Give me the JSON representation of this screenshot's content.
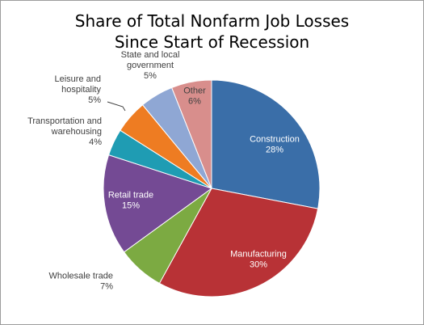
{
  "chart_data": {
    "type": "pie",
    "title": [
      "Share of Total Nonfarm Job Losses",
      "Since Start of Recession"
    ],
    "slices": [
      {
        "label": [
          "Construction"
        ],
        "value": 28,
        "pct_label": "28%",
        "color": "#3a6ea8"
      },
      {
        "label": [
          "Manufacturing"
        ],
        "value": 30,
        "pct_label": "30%",
        "color": "#b83236"
      },
      {
        "label": [
          "Wholesale trade"
        ],
        "value": 7,
        "pct_label": "7%",
        "color": "#7caa42"
      },
      {
        "label": [
          "Retail trade"
        ],
        "value": 15,
        "pct_label": "15%",
        "color": "#744a94"
      },
      {
        "label": [
          "Transportation and",
          "warehousing"
        ],
        "value": 4,
        "pct_label": "4%",
        "color": "#1f9cb3"
      },
      {
        "label": [
          "Leisure and",
          "hospitality"
        ],
        "value": 5,
        "pct_label": "5%",
        "color": "#ee7c22"
      },
      {
        "label": [
          "State and local",
          "government"
        ],
        "value": 5,
        "pct_label": "5%",
        "color": "#8fa7d4"
      },
      {
        "label": [
          "Other"
        ],
        "value": 6,
        "pct_label": "6%",
        "color": "#d88e8c"
      }
    ],
    "start_angle": "12 o'clock",
    "direction": "clockwise",
    "legend": "none (data labels)"
  }
}
